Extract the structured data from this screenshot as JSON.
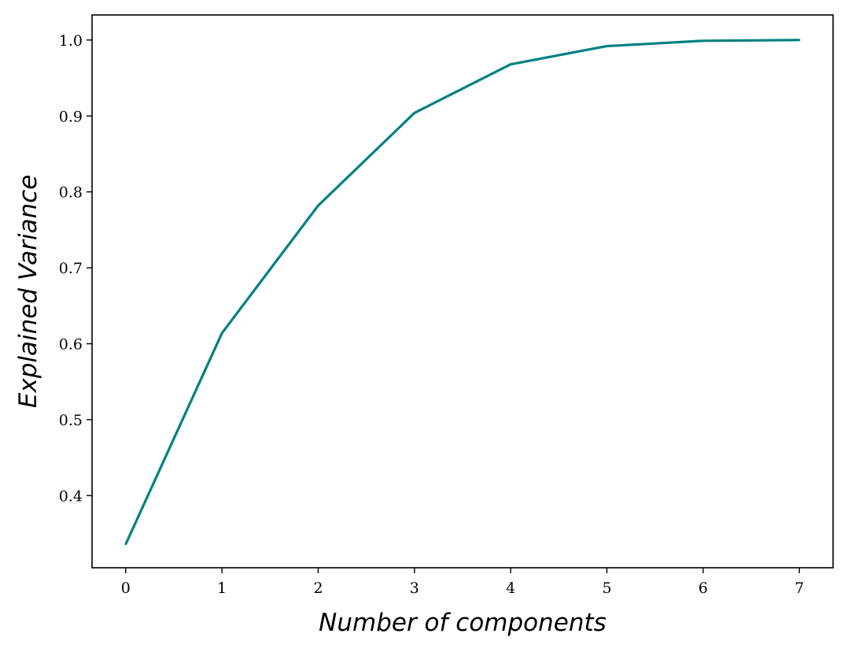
{
  "chart_data": {
    "type": "line",
    "title": "",
    "xlabel": "Number of components",
    "ylabel": "Explained Variance",
    "x": [
      0,
      1,
      2,
      3,
      4,
      5,
      6,
      7
    ],
    "series": [
      {
        "values": [
          0.336,
          0.614,
          0.782,
          0.904,
          0.968,
          0.992,
          0.999,
          1.0
        ],
        "color": "#008080"
      }
    ],
    "xlim": [
      -0.35,
      7.35
    ],
    "ylim": [
      0.305,
      1.033
    ],
    "xticks": [
      0,
      1,
      2,
      3,
      4,
      5,
      6,
      7
    ],
    "xtick_labels": [
      "0",
      "1",
      "2",
      "3",
      "4",
      "5",
      "6",
      "7"
    ],
    "yticks": [
      0.4,
      0.5,
      0.6,
      0.7,
      0.8,
      0.9,
      1.0
    ],
    "ytick_labels": [
      "0.4",
      "0.5",
      "0.6",
      "0.7",
      "0.8",
      "0.9",
      "1.0"
    ],
    "grid": false,
    "legend": "none"
  }
}
